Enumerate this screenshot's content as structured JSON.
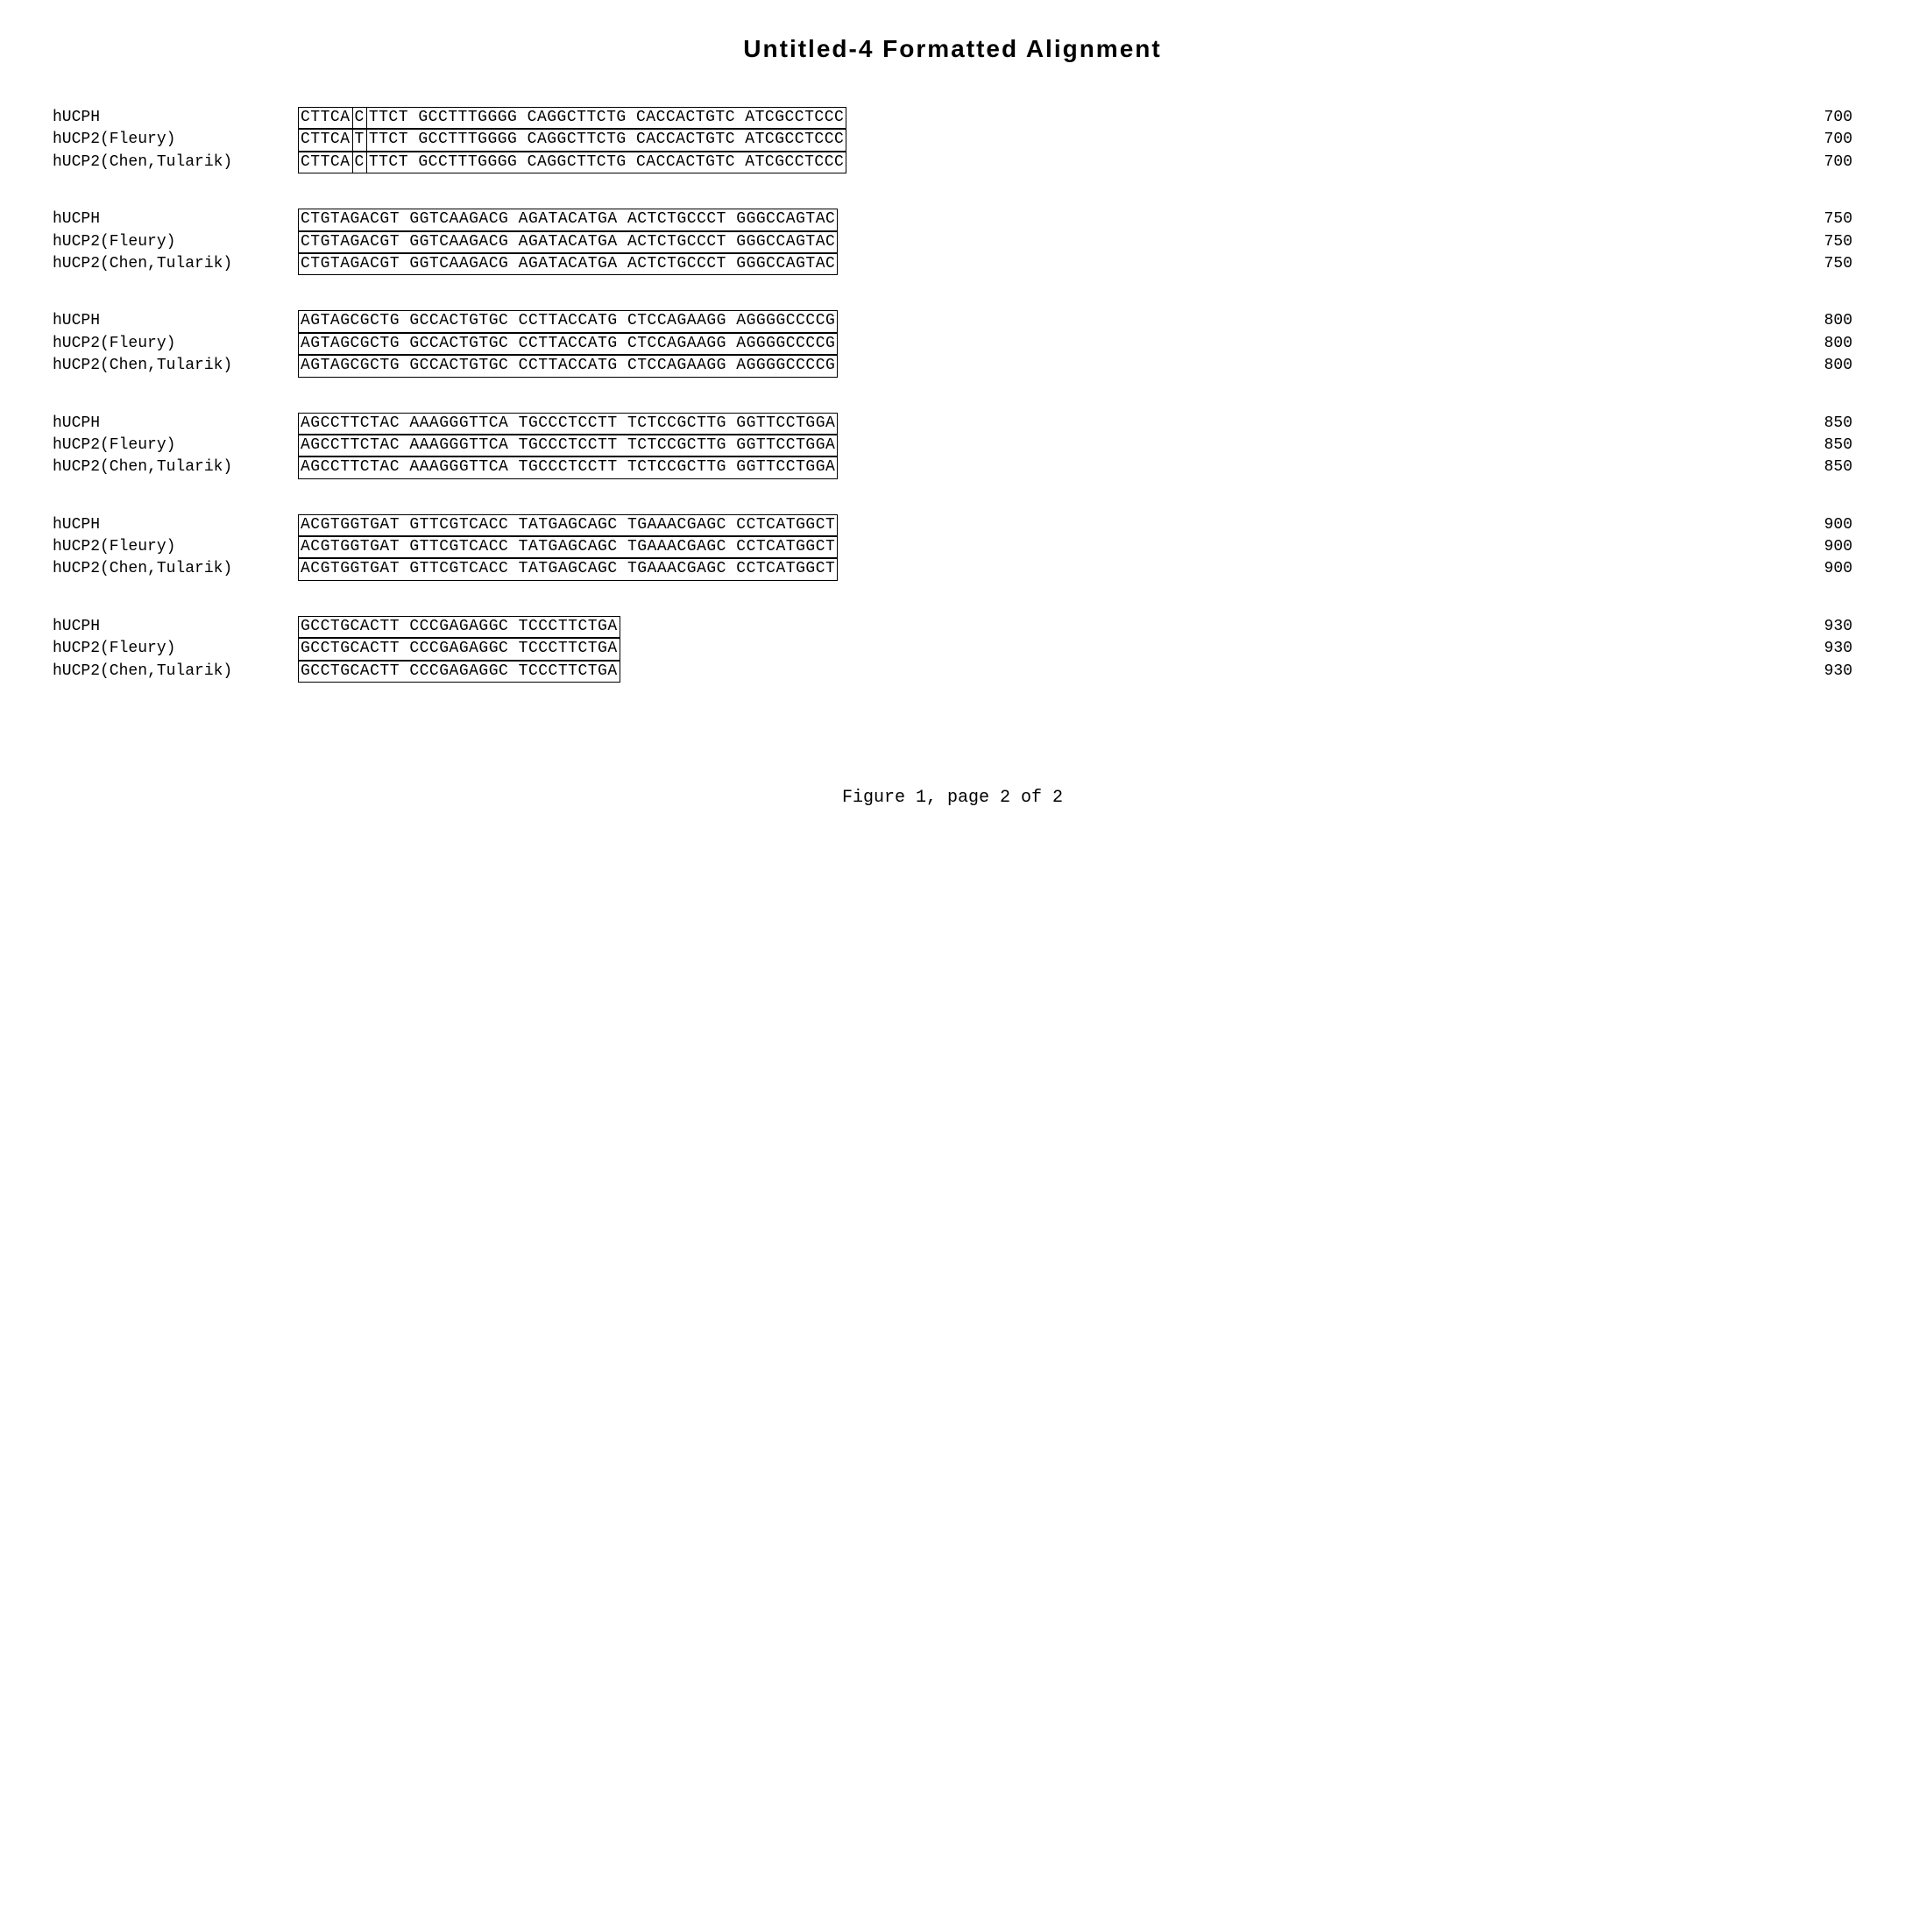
{
  "title": "Untitled-4  Formatted  Alignment",
  "caption": "Figure 1, page 2 of 2",
  "labels": {
    "l1": "hUCPH",
    "l2": "hUCP2(Fleury)",
    "l3": "hUCP2(Chen,Tularik)"
  },
  "blocks": [
    {
      "rows": [
        {
          "label": "l1",
          "seqA": "CTTCA",
          "seqB": "C",
          "seqC": "TTCT GCCTTTGGGG CAGGCTTCTG CACCACTGTC ATCGCCTCCC",
          "pos": "700"
        },
        {
          "label": "l2",
          "seqA": "CTTCA",
          "seqB": "T",
          "seqC": "TTCT GCCTTTGGGG CAGGCTTCTG CACCACTGTC ATCGCCTCCC",
          "pos": "700"
        },
        {
          "label": "l3",
          "seqA": "CTTCA",
          "seqB": "C",
          "seqC": "TTCT GCCTTTGGGG CAGGCTTCTG CACCACTGTC ATCGCCTCCC",
          "pos": "700"
        }
      ],
      "split": true
    },
    {
      "rows": [
        {
          "label": "l1",
          "seq": "CTGTAGACGT GGTCAAGACG AGATACATGA ACTCTGCCCT GGGCCAGTAC",
          "pos": "750"
        },
        {
          "label": "l2",
          "seq": "CTGTAGACGT GGTCAAGACG AGATACATGA ACTCTGCCCT GGGCCAGTAC",
          "pos": "750"
        },
        {
          "label": "l3",
          "seq": "CTGTAGACGT GGTCAAGACG AGATACATGA ACTCTGCCCT GGGCCAGTAC",
          "pos": "750"
        }
      ]
    },
    {
      "rows": [
        {
          "label": "l1",
          "seq": "AGTAGCGCTG GCCACTGTGC CCTTACCATG CTCCAGAAGG AGGGGCCCCG",
          "pos": "800"
        },
        {
          "label": "l2",
          "seq": "AGTAGCGCTG GCCACTGTGC CCTTACCATG CTCCAGAAGG AGGGGCCCCG",
          "pos": "800"
        },
        {
          "label": "l3",
          "seq": "AGTAGCGCTG GCCACTGTGC CCTTACCATG CTCCAGAAGG AGGGGCCCCG",
          "pos": "800"
        }
      ]
    },
    {
      "rows": [
        {
          "label": "l1",
          "seq": "AGCCTTCTAC AAAGGGTTCA TGCCCTCCTT TCTCCGCTTG GGTTCCTGGA",
          "pos": "850"
        },
        {
          "label": "l2",
          "seq": "AGCCTTCTAC AAAGGGTTCA TGCCCTCCTT TCTCCGCTTG GGTTCCTGGA",
          "pos": "850"
        },
        {
          "label": "l3",
          "seq": "AGCCTTCTAC AAAGGGTTCA TGCCCTCCTT TCTCCGCTTG GGTTCCTGGA",
          "pos": "850"
        }
      ]
    },
    {
      "rows": [
        {
          "label": "l1",
          "seq": "ACGTGGTGAT GTTCGTCACC TATGAGCAGC TGAAACGAGC CCTCATGGCT",
          "pos": "900"
        },
        {
          "label": "l2",
          "seq": "ACGTGGTGAT GTTCGTCACC TATGAGCAGC TGAAACGAGC CCTCATGGCT",
          "pos": "900"
        },
        {
          "label": "l3",
          "seq": "ACGTGGTGAT GTTCGTCACC TATGAGCAGC TGAAACGAGC CCTCATGGCT",
          "pos": "900"
        }
      ]
    },
    {
      "rows": [
        {
          "label": "l1",
          "seq": "GCCTGCACTT CCCGAGAGGC TCCCTTCTGA",
          "pos": "930"
        },
        {
          "label": "l2",
          "seq": "GCCTGCACTT CCCGAGAGGC TCCCTTCTGA",
          "pos": "930"
        },
        {
          "label": "l3",
          "seq": "GCCTGCACTT CCCGAGAGGC TCCCTTCTGA",
          "pos": "930"
        }
      ]
    }
  ]
}
